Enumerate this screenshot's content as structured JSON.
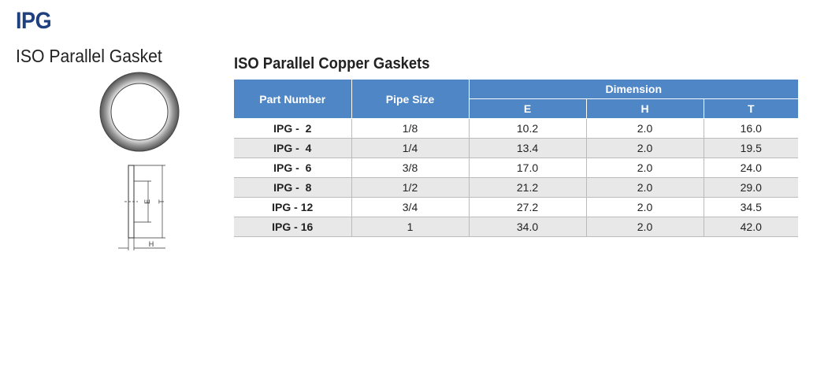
{
  "header": {
    "title": "IPG",
    "subtitle": "ISO Parallel Gasket"
  },
  "diagram": {
    "labels": [
      "E",
      "T",
      "H"
    ]
  },
  "table": {
    "title": "ISO Parallel Copper Gaskets",
    "headers": [
      "Part Number",
      "Pipe Size",
      "Dimension"
    ],
    "subheaders": [
      "E",
      "H",
      "T"
    ],
    "rows": [
      [
        "IPG -  2",
        "1/8",
        "10.2",
        "2.0",
        "16.0"
      ],
      [
        "IPG -  4",
        "1/4",
        "13.4",
        "2.0",
        "19.5"
      ],
      [
        "IPG -  6",
        "3/8",
        "17.0",
        "2.0",
        "24.0"
      ],
      [
        "IPG -  8",
        "1/2",
        "21.2",
        "2.0",
        "29.0"
      ],
      [
        "IPG - 12",
        "3/4",
        "27.2",
        "2.0",
        "34.5"
      ],
      [
        "IPG - 16",
        "1",
        "34.0",
        "2.0",
        "42.0"
      ]
    ]
  }
}
